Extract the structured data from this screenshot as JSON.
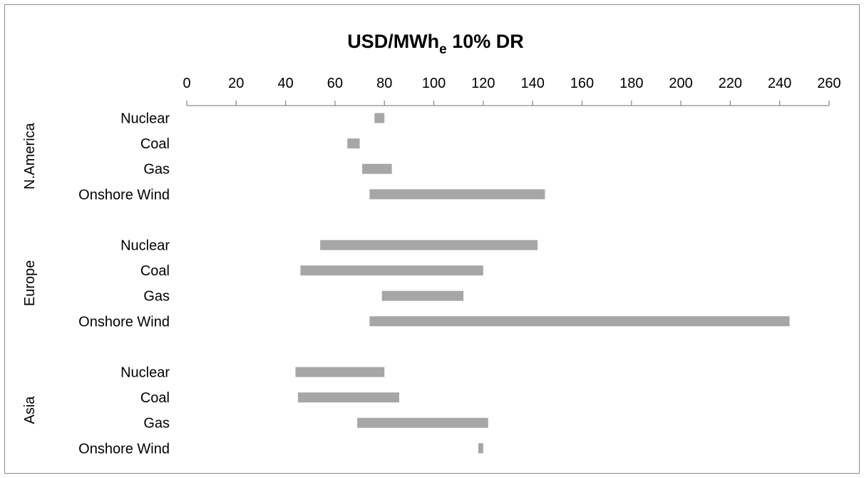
{
  "chart_data": {
    "type": "bar",
    "orientation": "horizontal-range",
    "title": {
      "main": "USD/MWh",
      "subscript": "e",
      "suffix": " 10% DR"
    },
    "xlim": [
      0,
      260
    ],
    "x_ticks": [
      "0",
      "20",
      "40",
      "60",
      "80",
      "100",
      "120",
      "140",
      "160",
      "180",
      "200",
      "220",
      "240",
      "260"
    ],
    "axis_position": "top",
    "grid": false,
    "bar_color": "#a6a6a6",
    "groups": [
      {
        "region": "N.America",
        "items": [
          {
            "category": "Nuclear",
            "low": 76,
            "high": 80
          },
          {
            "category": "Coal",
            "low": 65,
            "high": 70
          },
          {
            "category": "Gas",
            "low": 71,
            "high": 83
          },
          {
            "category": "Onshore Wind",
            "low": 74,
            "high": 145
          }
        ]
      },
      {
        "region": "Europe",
        "items": [
          {
            "category": "Nuclear",
            "low": 54,
            "high": 142
          },
          {
            "category": "Coal",
            "low": 46,
            "high": 120
          },
          {
            "category": "Gas",
            "low": 79,
            "high": 112
          },
          {
            "category": "Onshore Wind",
            "low": 74,
            "high": 244
          }
        ]
      },
      {
        "region": "Asia",
        "items": [
          {
            "category": "Nuclear",
            "low": 44,
            "high": 80
          },
          {
            "category": "Coal",
            "low": 45,
            "high": 86
          },
          {
            "category": "Gas",
            "low": 69,
            "high": 122
          },
          {
            "category": "Onshore Wind",
            "low": 118,
            "high": 120
          }
        ]
      }
    ]
  }
}
